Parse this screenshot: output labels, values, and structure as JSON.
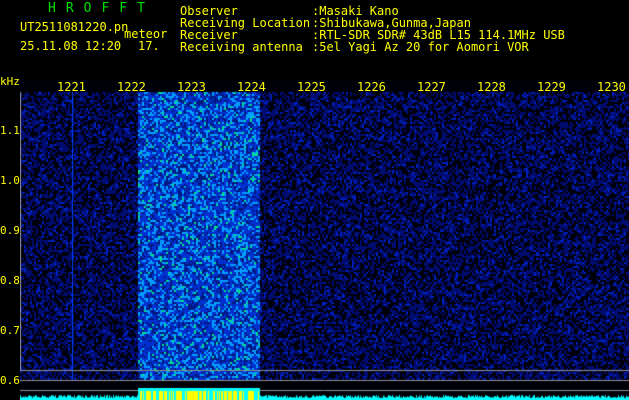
{
  "app_title": "HROFFT",
  "file_name": "UT2511081220.pn",
  "mode_label": "meteor",
  "datetime": "25.11.08 12:20",
  "count": "17.",
  "info": [
    {
      "label": "Observer",
      "value": ":Masaki Kano"
    },
    {
      "label": "Receiving Location",
      "value": ":Shibukawa,Gunma,Japan"
    },
    {
      "label": "Receiver",
      "value": ":RTL-SDR SDR# 43dB L15 114.1MHz USB"
    },
    {
      "label": "Receiving antenna",
      "value": ":5el Yagi Az 20 for Aomori VOR"
    }
  ],
  "axis": {
    "y_unit": "kHz",
    "y_ticks": [
      "1.1",
      "1.0",
      "0.9",
      "0.8",
      "0.7",
      "0.6"
    ],
    "x_ticks": [
      "1221",
      "1222",
      "1223",
      "1224",
      "1225",
      "1226",
      "1227",
      "1228",
      "1229",
      "1230"
    ]
  },
  "colors": {
    "text": "#ffff00",
    "title": "#00e000",
    "background": "#000000",
    "noise": "#0010a0",
    "meteor": "#00c0ff",
    "bar": "#00ffff",
    "bar_peak": "#ffff00"
  }
}
